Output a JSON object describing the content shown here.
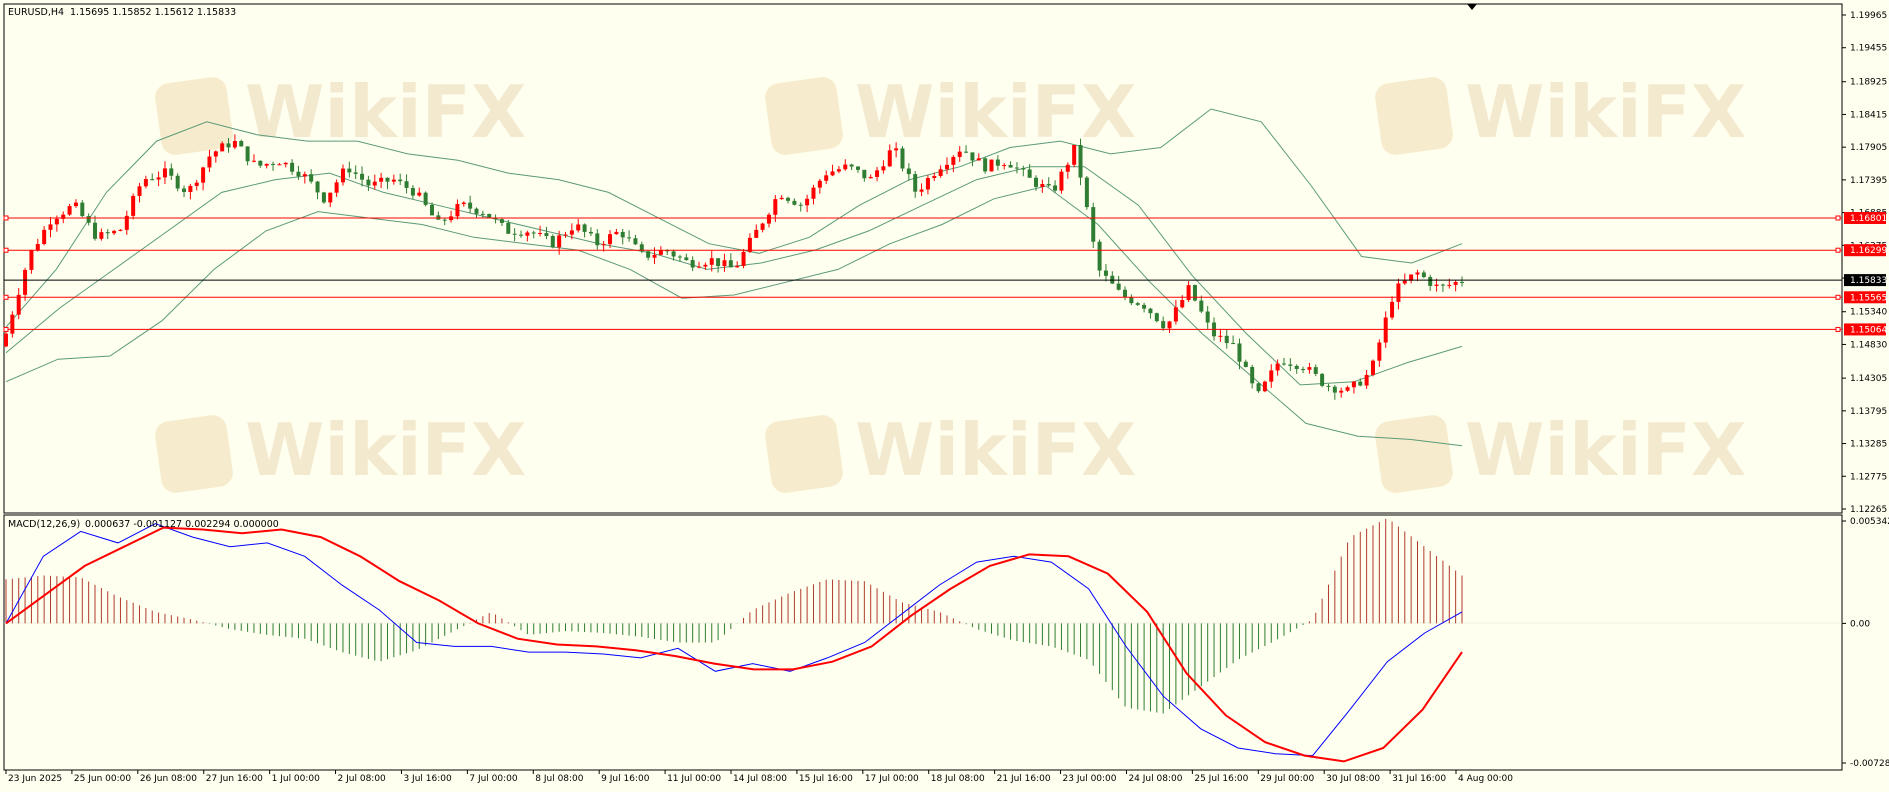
{
  "header": {
    "symbol": "EURUSD,H4",
    "ohlc": "1.15695 1.15852 1.15612 1.15833"
  },
  "macd_header": {
    "label": "MACD(12,26,9)",
    "values": "0.000637 -0.001127 0.002294 0.000000"
  },
  "watermark": {
    "text": "WikiFX"
  },
  "colors": {
    "background": "#fffff0",
    "bull": "#ff0000",
    "bear": "#2e7d32",
    "bands": "#5a9a78",
    "level_lines": "#ff0000",
    "current_price_line": "#000000",
    "macd_line": "#0000ff",
    "signal_line": "#ff0000",
    "hist_pos": "#b03a2e",
    "hist_neg": "#2e7d32"
  },
  "chart_data": [
    {
      "type": "candlestick",
      "title": "EURUSD,H4",
      "ylim": [
        1.12265,
        1.19965
      ],
      "y_ticks": [
        "1.19965",
        "1.19455",
        "1.18925",
        "1.18415",
        "1.17905",
        "1.17395",
        "1.16885",
        "1.16375",
        "1.15865",
        "1.15340",
        "1.14830",
        "1.14305",
        "1.13795",
        "1.13285",
        "1.12775",
        "1.12265"
      ],
      "x_ticks": [
        "23 Jun 2025",
        "25 Jun 00:00",
        "26 Jun 08:00",
        "27 Jun 16:00",
        "1 Jul 00:00",
        "2 Jul 08:00",
        "3 Jul 16:00",
        "7 Jul 00:00",
        "8 Jul 08:00",
        "9 Jul 16:00",
        "11 Jul 00:00",
        "14 Jul 08:00",
        "15 Jul 16:00",
        "17 Jul 00:00",
        "18 Jul 08:00",
        "21 Jul 16:00",
        "23 Jul 00:00",
        "24 Jul 08:00",
        "25 Jul 16:00",
        "29 Jul 00:00",
        "30 Jul 08:00",
        "31 Jul 16:00",
        "4 Aug 00:00"
      ],
      "current_price": "1.15833",
      "horizontal_levels": [
        "1.16801",
        "1.16299",
        "1.15565",
        "1.15064"
      ],
      "close_path": [
        1.15,
        1.162,
        1.168,
        1.17,
        1.165,
        1.166,
        1.174,
        1.175,
        1.172,
        1.178,
        1.18,
        1.176,
        1.177,
        1.175,
        1.171,
        1.176,
        1.173,
        1.174,
        1.172,
        1.167,
        1.17,
        1.169,
        1.166,
        1.166,
        1.164,
        1.167,
        1.164,
        1.166,
        1.162,
        1.163,
        1.161,
        1.1615,
        1.16,
        1.166,
        1.172,
        1.17,
        1.175,
        1.176,
        1.174,
        1.179,
        1.172,
        1.176,
        1.179,
        1.176,
        1.177,
        1.174,
        1.172,
        1.179,
        1.16,
        1.156,
        1.1545,
        1.151,
        1.157,
        1.15,
        1.148,
        1.14,
        1.146,
        1.145,
        1.142,
        1.141,
        1.144,
        1.1565,
        1.1595,
        1.157,
        1.1583
      ],
      "upper_band_path": [
        1.151,
        1.16,
        1.172,
        1.18,
        1.183,
        1.181,
        1.18,
        1.18,
        1.178,
        1.177,
        1.175,
        1.174,
        1.172,
        1.168,
        1.164,
        1.1625,
        1.165,
        1.17,
        1.174,
        1.176,
        1.179,
        1.18,
        1.178,
        1.179,
        1.185,
        1.183,
        1.173,
        1.162,
        1.161,
        1.164
      ],
      "lower_band_path": [
        1.1425,
        1.146,
        1.1465,
        1.152,
        1.16,
        1.166,
        1.169,
        1.168,
        1.167,
        1.165,
        1.164,
        1.163,
        1.16,
        1.1555,
        1.156,
        1.158,
        1.16,
        1.164,
        1.167,
        1.171,
        1.173,
        1.167,
        1.158,
        1.15,
        1.143,
        1.136,
        1.134,
        1.1335,
        1.1325
      ],
      "middle_band_path": [
        1.147,
        1.154,
        1.16,
        1.166,
        1.172,
        1.174,
        1.175,
        1.172,
        1.17,
        1.168,
        1.166,
        1.164,
        1.1625,
        1.16,
        1.161,
        1.163,
        1.166,
        1.17,
        1.174,
        1.176,
        1.176,
        1.17,
        1.159,
        1.15,
        1.142,
        1.1425,
        1.1455,
        1.148
      ]
    },
    {
      "type": "line",
      "title": "MACD(12,26,9)",
      "ylim": [
        -0.007285,
        0.005342
      ],
      "y_ticks": [
        "0.005342",
        "0.00",
        "-0.007285"
      ],
      "series": [
        {
          "name": "MACD",
          "values": [
            0,
            0.0035,
            0.0048,
            0.0042,
            0.0052,
            0.0045,
            0.004,
            0.0042,
            0.0035,
            0.002,
            0.0007,
            -0.001,
            -0.0012,
            -0.0012,
            -0.0015,
            -0.0015,
            -0.0016,
            -0.0018,
            -0.0013,
            -0.0025,
            -0.0021,
            -0.0025,
            -0.0018,
            -0.001,
            0.0005,
            0.002,
            0.0032,
            0.0035,
            0.0032,
            0.0018,
            -0.0012,
            -0.0038,
            -0.0055,
            -0.0065,
            -0.0068,
            -0.0069,
            -0.0045,
            -0.002,
            -0.0005,
            0.0006
          ]
        },
        {
          "name": "Signal",
          "values": [
            0,
            0.0015,
            0.003,
            0.004,
            0.005,
            0.0049,
            0.0047,
            0.0049,
            0.0045,
            0.0035,
            0.0022,
            0.0012,
            0,
            -0.0008,
            -0.0011,
            -0.0012,
            -0.0014,
            -0.0017,
            -0.0021,
            -0.0024,
            -0.0024,
            -0.002,
            -0.0012,
            0.0004,
            0.0018,
            0.003,
            0.0036,
            0.0035,
            0.0026,
            0.0006,
            -0.0026,
            -0.0048,
            -0.0062,
            -0.0069,
            -0.0072,
            -0.0065,
            -0.0045,
            -0.0015
          ]
        },
        {
          "name": "Histogram",
          "values": [
            0.0023,
            0.0025,
            0.0024,
            0.0014,
            0.0006,
            0.0002,
            -0.0003,
            -0.0006,
            -0.0008,
            -0.0015,
            -0.002,
            -0.0014,
            -0.0004,
            0.0006,
            -0.0006,
            -0.0004,
            -0.0005,
            -0.0007,
            -0.001,
            -0.001,
            0.0007,
            0.0016,
            0.0023,
            0.0022,
            0.0011,
            0.0006,
            -0.0003,
            -0.0009,
            -0.0012,
            -0.0019,
            -0.0044,
            -0.0047,
            -0.0033,
            -0.0019,
            -0.0009,
            0.0002,
            0.0045,
            0.0055,
            0.004,
            0.0025
          ]
        }
      ]
    }
  ]
}
